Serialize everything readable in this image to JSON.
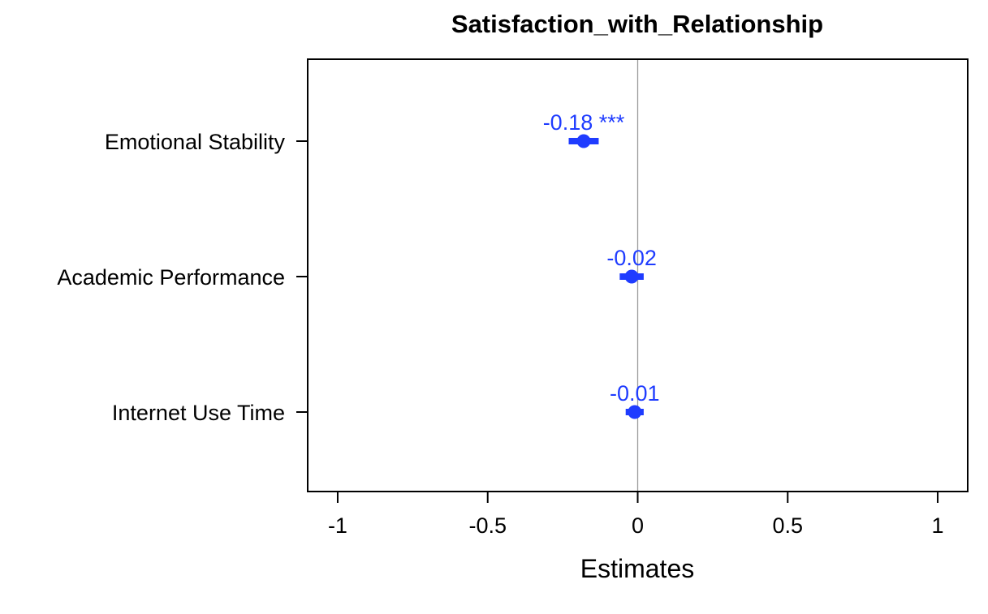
{
  "chart_data": {
    "type": "forest",
    "title": "Satisfaction_with_Relationship",
    "xlabel": "Estimates",
    "ylabel": "",
    "xlim": [
      -1.1,
      1.1
    ],
    "xticks": [
      -1,
      -0.5,
      0,
      0.5,
      1
    ],
    "xtick_labels": [
      "-1",
      "-0.5",
      "0",
      "0.5",
      "1"
    ],
    "reference_line": 0,
    "grid": false,
    "legend": "none",
    "point_color": "#1f3cff",
    "reference_color": "#9a9a9a",
    "terms": [
      {
        "label": "Emotional Stability",
        "estimate": -0.18,
        "ci_low": -0.23,
        "ci_high": -0.13,
        "value_label": "-0.18 ***"
      },
      {
        "label": "Academic Performance",
        "estimate": -0.02,
        "ci_low": -0.06,
        "ci_high": 0.02,
        "value_label": "-0.02"
      },
      {
        "label": "Internet Use Time",
        "estimate": -0.01,
        "ci_low": -0.04,
        "ci_high": 0.02,
        "value_label": "-0.01"
      }
    ]
  }
}
